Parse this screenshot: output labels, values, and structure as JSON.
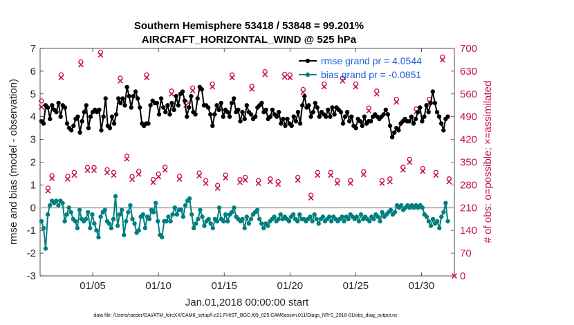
{
  "chart_data": {
    "type": "line",
    "title_line1": "Southern Hemisphere 53418 / 53848 = 99.201%",
    "title_line2": "AIRCRAFT_HORIZONTAL_WIND @ 525 hPa",
    "xlabel": "Jan.01,2018 00:00:00 start",
    "ylabel_left": "rmse and bias (model - observation)",
    "ylabel_right": "# of obs: o=possible; ×=assimilated",
    "footer": "data file: /Users/raeder/DAI/ATM_forcXX/CAM6_setup/f.e21.FHIST_BGC.f09_025.CAM6assim.011/Diags_NTrS_2018-01/obs_diag_output.nc",
    "x_range": [
      1,
      32.5
    ],
    "ylim_left": [
      -3,
      7
    ],
    "ylim_right": [
      0,
      700
    ],
    "x_ticks": [
      {
        "value": 5,
        "label": "01/05"
      },
      {
        "value": 10,
        "label": "01/10"
      },
      {
        "value": 15,
        "label": "01/15"
      },
      {
        "value": 20,
        "label": "01/20"
      },
      {
        "value": 25,
        "label": "01/25"
      },
      {
        "value": 30,
        "label": "01/30"
      }
    ],
    "y_ticks_left": [
      "-3",
      "-2",
      "-1",
      "0",
      "1",
      "2",
      "3",
      "4",
      "5",
      "6",
      "7"
    ],
    "y_ticks_right": [
      "0",
      "70",
      "140",
      "210",
      "280",
      "350",
      "420",
      "490",
      "560",
      "630",
      "700"
    ],
    "series": [
      {
        "name": "rmse",
        "legend_label": "rmse grand pr = 4.0544",
        "color": "#000000",
        "axis": "left",
        "values": [
          3.8,
          3.7,
          4.5,
          4.4,
          3.9,
          4.5,
          4.3,
          4.2,
          4.6,
          4.0,
          4.5,
          4.4,
          3.7,
          3.5,
          3.4,
          3.6,
          3.9,
          4.0,
          3.3,
          3.8,
          4.2,
          4.5,
          3.5,
          4.0,
          4.2,
          4.3,
          4.2,
          4.3,
          3.4,
          4.0,
          4.8,
          3.6,
          3.5,
          4.0,
          3.7,
          4.1,
          4.8,
          4.6,
          4.8,
          4.5,
          5.3,
          4.9,
          4.4,
          4.9,
          5.1,
          4.8,
          4.4,
          3.7,
          3.6,
          3.7,
          3.7,
          4.5,
          4.7,
          4.6,
          4.6,
          4.1,
          4.8,
          4.4,
          4.2,
          4.5,
          4.1,
          4.6,
          4.3,
          4.9,
          4.5,
          5.0,
          5.1,
          4.7,
          4.0,
          4.4,
          4.9,
          4.2,
          4.1,
          4.8,
          5.3,
          5.2,
          4.5,
          4.5,
          4.4,
          4.1,
          3.6,
          4.1,
          4.5,
          4.3,
          4.6,
          4.0,
          4.3,
          4.2,
          4.0,
          4.6,
          4.8,
          4.2,
          4.3,
          3.8,
          4.2,
          3.9,
          4.5,
          4.2,
          4.1,
          3.9,
          4.0,
          4.4,
          4.5,
          4.6,
          4.2,
          4.3,
          3.9,
          4.0,
          4.3,
          4.1,
          4.0,
          4.2,
          3.7,
          3.9,
          3.6,
          3.9,
          3.7,
          3.6,
          4.0,
          3.8,
          4.2,
          3.7,
          4.5,
          4.9,
          4.4,
          4.5,
          4.0,
          4.2,
          4.6,
          4.4,
          4.0,
          4.2,
          4.1,
          4.0,
          4.3,
          4.0,
          4.4,
          4.1,
          4.4,
          4.3,
          4.2,
          3.7,
          4.0,
          4.2,
          3.8,
          4.0,
          3.6,
          3.5,
          3.9,
          3.8,
          3.6,
          4.0,
          3.7,
          3.8,
          3.8,
          4.0,
          4.1,
          4.0,
          3.9,
          4.0,
          4.1,
          4.3,
          4.1,
          3.6,
          3.1,
          3.3,
          3.5,
          3.4,
          3.7,
          3.8,
          3.9,
          3.8,
          3.8,
          4.0,
          3.7,
          3.9,
          4.2,
          4.4,
          3.8,
          4.0,
          4.5,
          4.2,
          4.6,
          5.1,
          4.6,
          4.2,
          4.0,
          3.7,
          3.4,
          3.9,
          4.0
        ]
      },
      {
        "name": "bias",
        "legend_label": "bias grand pr = -0.0851",
        "color": "#007f7f",
        "axis": "left",
        "values": [
          -0.6,
          -0.9,
          -1.8,
          -0.3,
          0.1,
          0.3,
          0.2,
          0.3,
          0.1,
          0.3,
          0.2,
          -0.6,
          -0.3,
          0.0,
          -0.2,
          -0.5,
          -0.6,
          -0.9,
          -0.1,
          -0.5,
          -0.6,
          -0.5,
          -0.2,
          -0.9,
          -0.3,
          -0.7,
          -1.0,
          -1.3,
          -0.4,
          -0.2,
          -0.1,
          -0.6,
          -0.7,
          -0.9,
          -0.5,
          0.5,
          -0.8,
          -0.3,
          -0.1,
          -1.2,
          -0.6,
          -0.2,
          0.1,
          -0.5,
          -0.7,
          -1.1,
          -1.0,
          -0.4,
          -0.3,
          -0.9,
          -0.4,
          -0.5,
          -0.1,
          -0.2,
          0.2,
          -0.6,
          -1.2,
          -1.3,
          -0.6,
          -0.6,
          -0.4,
          -0.6,
          -0.3,
          0.0,
          -0.3,
          -0.1,
          -0.1,
          -0.4,
          0.1,
          0.3,
          0.4,
          -0.3,
          -0.9,
          -0.7,
          -0.5,
          -0.1,
          -0.4,
          -0.8,
          -0.6,
          -0.5,
          -0.7,
          -0.9,
          -0.5,
          -0.6,
          0.0,
          -0.5,
          -0.6,
          -0.3,
          -0.6,
          -0.3,
          -0.2,
          0.0,
          -0.4,
          -0.5,
          -0.6,
          -0.5,
          -0.9,
          -0.4,
          -0.7,
          -0.5,
          -0.3,
          -0.2,
          -0.1,
          -0.5,
          -0.7,
          -0.9,
          -0.7,
          -0.8,
          -0.6,
          -0.5,
          -0.4,
          -0.6,
          -0.5,
          -0.3,
          -0.5,
          -0.4,
          -0.5,
          -0.6,
          -0.4,
          -0.3,
          -0.5,
          -0.6,
          -0.3,
          -0.5,
          -0.5,
          -0.6,
          -0.5,
          -0.4,
          -0.6,
          -0.3,
          -0.5,
          -0.7,
          -0.5,
          -0.4,
          -0.6,
          -0.5,
          -0.4,
          -0.6,
          -0.4,
          -0.5,
          -0.6,
          -0.5,
          -0.4,
          -0.6,
          -0.4,
          -0.5,
          -0.3,
          -0.4,
          -0.5,
          -0.4,
          -0.6,
          -0.3,
          -0.5,
          -0.4,
          -0.5,
          -0.6,
          -0.4,
          -0.5,
          -0.3,
          -0.4,
          -0.6,
          -0.2,
          -0.4,
          -0.3,
          -0.2,
          -0.1,
          -0.3,
          -0.2,
          0.1,
          0.0,
          0.1,
          -0.1,
          0.0,
          0.1,
          0.0,
          0.1,
          0.0,
          0.1,
          0.0,
          0.1,
          0.0,
          -0.3,
          -0.4,
          -0.6,
          -0.8,
          -0.5,
          -0.7,
          -0.6,
          -0.9,
          -0.4,
          -0.2,
          0.2,
          -0.6
        ]
      },
      {
        "name": "obs possible",
        "color": "#c8104f",
        "axis": "right",
        "marker": "circle",
        "points": [
          [
            1.1,
            530
          ],
          [
            1.6,
            262
          ],
          [
            1.9,
            300
          ],
          [
            2.6,
            610
          ],
          [
            3.1,
            298
          ],
          [
            3.6,
            310
          ],
          [
            4.1,
            650
          ],
          [
            4.6,
            325
          ],
          [
            5.1,
            325
          ],
          [
            5.6,
            680
          ],
          [
            6.1,
            318
          ],
          [
            6.6,
            310
          ],
          [
            7.1,
            600
          ],
          [
            7.6,
            360
          ],
          [
            8.0,
            297
          ],
          [
            8.5,
            313
          ],
          [
            9.1,
            610
          ],
          [
            9.6,
            288
          ],
          [
            10.0,
            305
          ],
          [
            10.5,
            326
          ],
          [
            11.0,
            560
          ],
          [
            11.6,
            298
          ],
          [
            12.1,
            525
          ],
          [
            12.6,
            570
          ],
          [
            13.1,
            308
          ],
          [
            13.6,
            285
          ],
          [
            14.1,
            582
          ],
          [
            14.5,
            270
          ],
          [
            15.1,
            302
          ],
          [
            15.6,
            610
          ],
          [
            16.2,
            288
          ],
          [
            16.6,
            295
          ],
          [
            17.1,
            575
          ],
          [
            17.6,
            285
          ],
          [
            18.1,
            620
          ],
          [
            18.5,
            290
          ],
          [
            19.1,
            282
          ],
          [
            19.6,
            612
          ],
          [
            20.0,
            610
          ],
          [
            20.6,
            295
          ],
          [
            21.0,
            565
          ],
          [
            21.6,
            240
          ],
          [
            22.1,
            310
          ],
          [
            22.6,
            582
          ],
          [
            23.1,
            310
          ],
          [
            23.6,
            285
          ],
          [
            24.0,
            600
          ],
          [
            24.6,
            285
          ],
          [
            25.0,
            582
          ],
          [
            25.6,
            312
          ],
          [
            26.0,
            508
          ],
          [
            26.6,
            560
          ],
          [
            27.0,
            285
          ],
          [
            27.6,
            290
          ],
          [
            28.1,
            535
          ],
          [
            28.6,
            326
          ],
          [
            29.1,
            350
          ],
          [
            29.6,
            505
          ],
          [
            30.1,
            322
          ],
          [
            30.6,
            535
          ],
          [
            31.1,
            310
          ],
          [
            31.6,
            665
          ],
          [
            32.1,
            290
          ]
        ]
      },
      {
        "name": "obs assimilated",
        "color": "#c8104f",
        "axis": "right",
        "marker": "x",
        "points": [
          [
            1.1,
            520
          ],
          [
            1.6,
            262
          ],
          [
            1.9,
            300
          ],
          [
            2.6,
            610
          ],
          [
            3.1,
            298
          ],
          [
            3.6,
            310
          ],
          [
            4.1,
            650
          ],
          [
            4.6,
            325
          ],
          [
            5.1,
            325
          ],
          [
            5.6,
            680
          ],
          [
            6.1,
            318
          ],
          [
            6.6,
            310
          ],
          [
            7.1,
            600
          ],
          [
            7.6,
            360
          ],
          [
            8.0,
            297
          ],
          [
            8.5,
            313
          ],
          [
            9.1,
            610
          ],
          [
            9.6,
            288
          ],
          [
            10.0,
            305
          ],
          [
            10.5,
            326
          ],
          [
            11.0,
            560
          ],
          [
            11.6,
            298
          ],
          [
            12.1,
            525
          ],
          [
            12.6,
            570
          ],
          [
            13.1,
            308
          ],
          [
            13.6,
            285
          ],
          [
            14.1,
            582
          ],
          [
            14.5,
            270
          ],
          [
            15.1,
            302
          ],
          [
            15.6,
            610
          ],
          [
            16.2,
            288
          ],
          [
            16.6,
            295
          ],
          [
            17.1,
            575
          ],
          [
            17.6,
            285
          ],
          [
            18.1,
            620
          ],
          [
            18.5,
            290
          ],
          [
            19.1,
            282
          ],
          [
            19.6,
            612
          ],
          [
            20.0,
            610
          ],
          [
            20.6,
            295
          ],
          [
            21.0,
            565
          ],
          [
            21.6,
            240
          ],
          [
            22.1,
            310
          ],
          [
            22.6,
            582
          ],
          [
            23.1,
            310
          ],
          [
            23.6,
            285
          ],
          [
            24.0,
            600
          ],
          [
            24.6,
            285
          ],
          [
            25.0,
            582
          ],
          [
            25.6,
            312
          ],
          [
            26.0,
            508
          ],
          [
            26.6,
            560
          ],
          [
            27.0,
            285
          ],
          [
            27.6,
            290
          ],
          [
            28.1,
            535
          ],
          [
            28.6,
            326
          ],
          [
            29.1,
            350
          ],
          [
            29.6,
            505
          ],
          [
            30.1,
            322
          ],
          [
            30.6,
            535
          ],
          [
            31.1,
            310
          ],
          [
            31.6,
            665
          ],
          [
            32.1,
            290
          ],
          [
            32.5,
            0
          ]
        ]
      }
    ]
  }
}
